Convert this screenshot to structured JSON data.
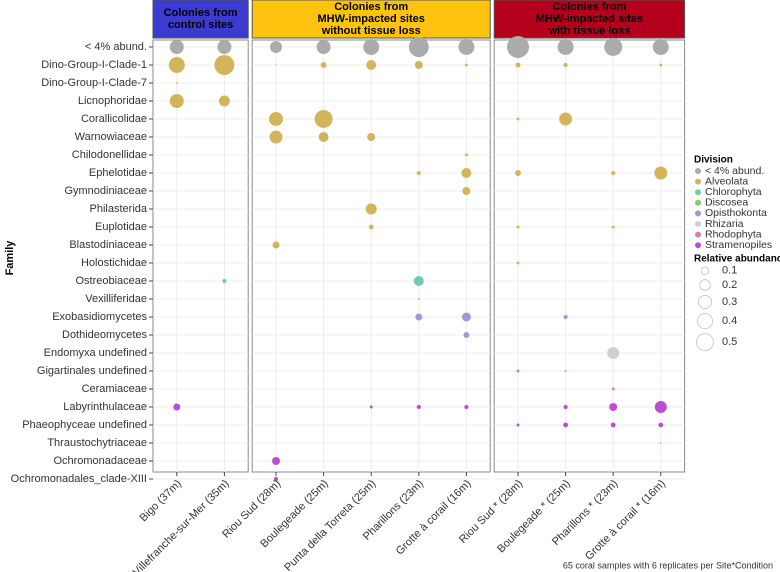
{
  "chart_data": {
    "type": "bubble",
    "y_label": "Family",
    "caption": "65 coral samples with 6 replicates per Site*Condition",
    "panels": [
      {
        "title": [
          "Colonies from",
          "control sites"
        ],
        "color": "#3b3bd1",
        "sites": [
          "Bigo (37m)",
          "Villefranche-sur-Mer (35m)"
        ]
      },
      {
        "title": [
          "Colonies from",
          "MHW-impacted sites",
          "without tissue loss"
        ],
        "color": "#ffc20e",
        "sites": [
          "Riou Sud (28m)",
          "Boulegeade (25m)",
          "Punta della Torreta (25m)",
          "Pharillons (23m)",
          "Grotte à corail (16m)"
        ]
      },
      {
        "title": [
          "Colonies from",
          "MHW-impacted sites",
          "with tissue loss"
        ],
        "color": "#b5001d",
        "sites": [
          "Riou Sud * (28m)",
          "Boulegeade * (25m)",
          "Pharillons * (23m)",
          "Grotte à corail * (16m)"
        ]
      }
    ],
    "legend_title": "Division",
    "series": [
      {
        "name": "< 4% abund.",
        "color": "#ababab",
        "families": [
          {
            "name": "< 4% abund.",
            "values": [
              0.34,
              0.34,
              0.25,
              0.34,
              0.44,
              0.69,
              0.44,
              0.84,
              0.44,
              0.56,
              0.44
            ]
          }
        ]
      },
      {
        "name": "Alveolata",
        "color": "#d2b55b",
        "families": [
          {
            "name": "Dino-Group-I-Clade-1",
            "values": [
              0.44,
              0.69,
              0.003,
              0.06,
              0.17,
              0.11,
              0.015,
              0.04,
              0.03,
              null,
              0.015
            ]
          },
          {
            "name": "Dino-Group-I-Clade-7",
            "values": [
              0.005,
              null,
              null,
              null,
              null,
              null,
              null,
              null,
              null,
              null,
              null
            ]
          },
          {
            "name": "Licnophoridae",
            "values": [
              0.34,
              0.21,
              null,
              null,
              null,
              null,
              null,
              null,
              null,
              null,
              null
            ]
          },
          {
            "name": "Corallicolidae",
            "values": [
              null,
              null,
              0.34,
              0.56,
              null,
              null,
              null,
              0.015,
              0.29,
              null,
              null
            ]
          },
          {
            "name": "Warnowiaceae",
            "values": [
              null,
              null,
              0.29,
              0.17,
              0.11,
              null,
              null,
              null,
              null,
              null,
              null
            ]
          },
          {
            "name": "Chilodonellidae",
            "values": [
              null,
              null,
              null,
              null,
              null,
              null,
              0.015,
              null,
              null,
              null,
              null
            ]
          },
          {
            "name": "Ephelotidae",
            "values": [
              null,
              null,
              null,
              null,
              null,
              0.03,
              0.17,
              0.06,
              null,
              0.03,
              0.29
            ]
          },
          {
            "name": "Gymnodiniaceae",
            "values": [
              null,
              null,
              null,
              null,
              null,
              null,
              0.11,
              null,
              null,
              null,
              null
            ]
          },
          {
            "name": "Philasterida",
            "values": [
              null,
              null,
              null,
              null,
              0.21,
              null,
              null,
              null,
              null,
              null,
              null
            ]
          },
          {
            "name": "Euplotidae",
            "values": [
              null,
              null,
              null,
              null,
              0.04,
              null,
              null,
              0.015,
              null,
              0.015,
              null
            ]
          },
          {
            "name": "Blastodiniaceae",
            "values": [
              null,
              null,
              0.085,
              null,
              null,
              null,
              null,
              null,
              null,
              null,
              null
            ]
          },
          {
            "name": "Holostichidae",
            "values": [
              null,
              null,
              null,
              null,
              null,
              null,
              null,
              0.015,
              null,
              null,
              null
            ]
          }
        ]
      },
      {
        "name": "Chlorophyta",
        "color": "#6fcbb2",
        "families": [
          {
            "name": "Ostreobiaceae",
            "values": [
              null,
              0.03,
              null,
              null,
              null,
              0.17,
              null,
              null,
              null,
              null,
              null
            ]
          }
        ]
      },
      {
        "name": "Discosea",
        "color": "#86cc6c",
        "families": [
          {
            "name": "Vexilliferidae",
            "values": [
              null,
              null,
              null,
              null,
              null,
              0.007,
              null,
              null,
              null,
              null,
              null
            ]
          }
        ]
      },
      {
        "name": "Opisthokonta",
        "color": "#9d9ad9",
        "families": [
          {
            "name": "Exobasidiomycetes",
            "values": [
              null,
              null,
              null,
              null,
              null,
              0.085,
              0.14,
              null,
              0.03,
              null,
              null
            ]
          },
          {
            "name": "Dothideomycetes",
            "values": [
              null,
              null,
              null,
              null,
              null,
              null,
              0.06,
              null,
              null,
              null,
              null
            ]
          }
        ]
      },
      {
        "name": "Rhizaria",
        "color": "#cfcfcf",
        "families": [
          {
            "name": "Endomyxa undefined",
            "values": [
              null,
              null,
              null,
              null,
              null,
              null,
              null,
              null,
              null,
              0.25,
              null
            ]
          }
        ]
      },
      {
        "name": "Rhodophyta",
        "color": "#d77fb3",
        "families": [
          {
            "name": "Gigartinales undefined",
            "values": [
              null,
              null,
              null,
              null,
              null,
              null,
              null,
              0.015,
              0.007,
              null,
              null
            ]
          },
          {
            "name": "Ceramiaceae",
            "values": [
              null,
              null,
              null,
              null,
              null,
              null,
              null,
              null,
              null,
              0.015,
              null
            ]
          }
        ]
      },
      {
        "name": "Stramenopiles",
        "color": "#b84fd2",
        "families": [
          {
            "name": "Labyrinthulaceae",
            "values": [
              0.085,
              null,
              null,
              null,
              0.015,
              0.03,
              0.03,
              null,
              0.03,
              0.11,
              0.25
            ]
          },
          {
            "name": "Phaeophyceae undefined",
            "values": [
              null,
              null,
              null,
              null,
              null,
              null,
              null,
              0.015,
              0.04,
              0.04,
              0.04
            ]
          },
          {
            "name": "Thraustochytriaceae",
            "values": [
              null,
              null,
              null,
              null,
              null,
              null,
              null,
              null,
              null,
              null,
              0.003
            ]
          },
          {
            "name": "Ochromonadaceae",
            "values": [
              null,
              null,
              0.11,
              null,
              null,
              null,
              null,
              null,
              null,
              null,
              null
            ]
          },
          {
            "name": "Ochromonadales_clade-XIII",
            "values": [
              null,
              null,
              0.03,
              null,
              null,
              null,
              null,
              null,
              null,
              null,
              null
            ]
          }
        ]
      }
    ],
    "size_legend": {
      "title": "Relative abundance",
      "values": [
        0.1,
        0.2,
        0.3,
        0.4,
        0.5
      ]
    }
  }
}
